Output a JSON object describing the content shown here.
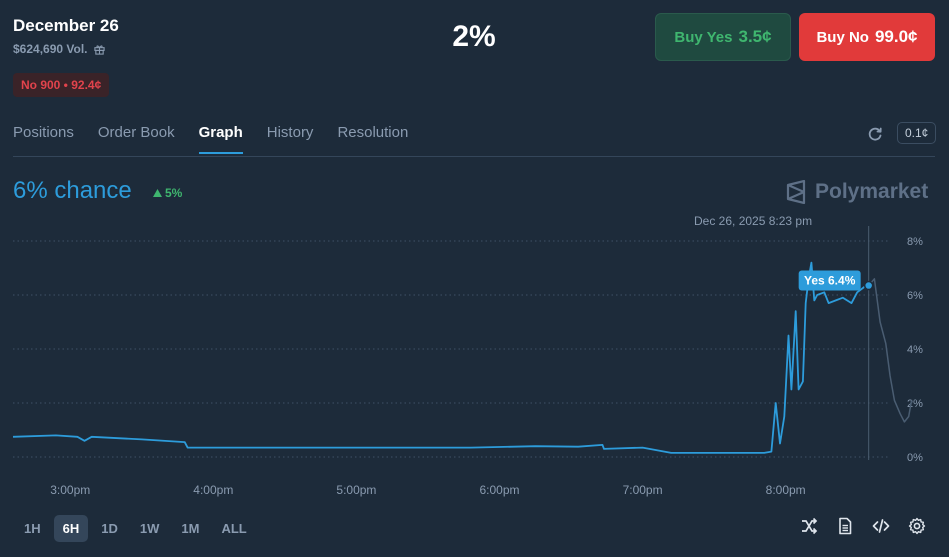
{
  "market": {
    "title": "December 26",
    "volume": "$624,690 Vol.",
    "position": "No 900 • 92.4¢",
    "current_pct": "2%"
  },
  "buttons": {
    "yes_label": "Buy Yes",
    "yes_price": "3.5¢",
    "no_label": "Buy No",
    "no_price": "99.0¢"
  },
  "tabs": [
    "Positions",
    "Order Book",
    "Graph",
    "History",
    "Resolution"
  ],
  "active_tab": "Graph",
  "tick_size": "0.1¢",
  "chance": {
    "label": "6% chance",
    "delta": "5%"
  },
  "brand": "Polymarket",
  "hover": {
    "date": "Dec 26, 2025 8:23 pm",
    "tooltip": "Yes 6.4%"
  },
  "ranges": [
    "1H",
    "6H",
    "1D",
    "1W",
    "1M",
    "ALL"
  ],
  "active_range": "6H",
  "colors": {
    "background": "#1d2b3a",
    "accent": "#2d9cdb",
    "yes_green": "#3fb66f",
    "no_red": "#e13a3a"
  },
  "chart_data": {
    "type": "line",
    "x_ticks": [
      "3:00pm",
      "4:00pm",
      "5:00pm",
      "6:00pm",
      "7:00pm",
      "8:00pm"
    ],
    "y_ticks": [
      "0%",
      "2%",
      "4%",
      "6%",
      "8%"
    ],
    "ylim": [
      0,
      8
    ],
    "xlim": [
      14.6,
      20.75
    ],
    "grid": true,
    "series": [
      {
        "name": "Yes",
        "points": [
          [
            14.6,
            0.75
          ],
          [
            14.9,
            0.8
          ],
          [
            15.05,
            0.75
          ],
          [
            15.1,
            0.6
          ],
          [
            15.15,
            0.75
          ],
          [
            15.5,
            0.65
          ],
          [
            15.8,
            0.55
          ],
          [
            15.82,
            0.35
          ],
          [
            16.5,
            0.35
          ],
          [
            17.3,
            0.35
          ],
          [
            17.8,
            0.35
          ],
          [
            18.25,
            0.4
          ],
          [
            18.55,
            0.38
          ],
          [
            18.72,
            0.45
          ],
          [
            18.73,
            0.3
          ],
          [
            19.0,
            0.35
          ],
          [
            19.2,
            0.15
          ],
          [
            19.85,
            0.15
          ],
          [
            19.9,
            0.2
          ],
          [
            19.93,
            2.0
          ],
          [
            19.96,
            0.5
          ],
          [
            19.99,
            1.5
          ],
          [
            20.02,
            4.5
          ],
          [
            20.04,
            2.5
          ],
          [
            20.07,
            5.4
          ],
          [
            20.09,
            2.5
          ],
          [
            20.12,
            2.8
          ],
          [
            20.14,
            5.7
          ],
          [
            20.16,
            6.6
          ],
          [
            20.18,
            7.2
          ],
          [
            20.2,
            5.8
          ],
          [
            20.22,
            6.0
          ],
          [
            20.27,
            6.1
          ],
          [
            20.3,
            5.7
          ],
          [
            20.35,
            5.8
          ],
          [
            20.4,
            5.9
          ],
          [
            20.46,
            5.7
          ],
          [
            20.5,
            6.1
          ],
          [
            20.55,
            6.3
          ],
          [
            20.58,
            6.35
          ]
        ]
      },
      {
        "name": "",
        "points": [
          [
            20.58,
            6.35
          ],
          [
            20.62,
            6.6
          ],
          [
            20.66,
            5.0
          ],
          [
            20.7,
            4.2
          ],
          [
            20.73,
            3.0
          ],
          [
            20.76,
            2.1
          ],
          [
            20.8,
            1.6
          ],
          [
            20.83,
            1.3
          ],
          [
            20.86,
            1.5
          ],
          [
            20.88,
            2.1
          ]
        ]
      }
    ]
  }
}
